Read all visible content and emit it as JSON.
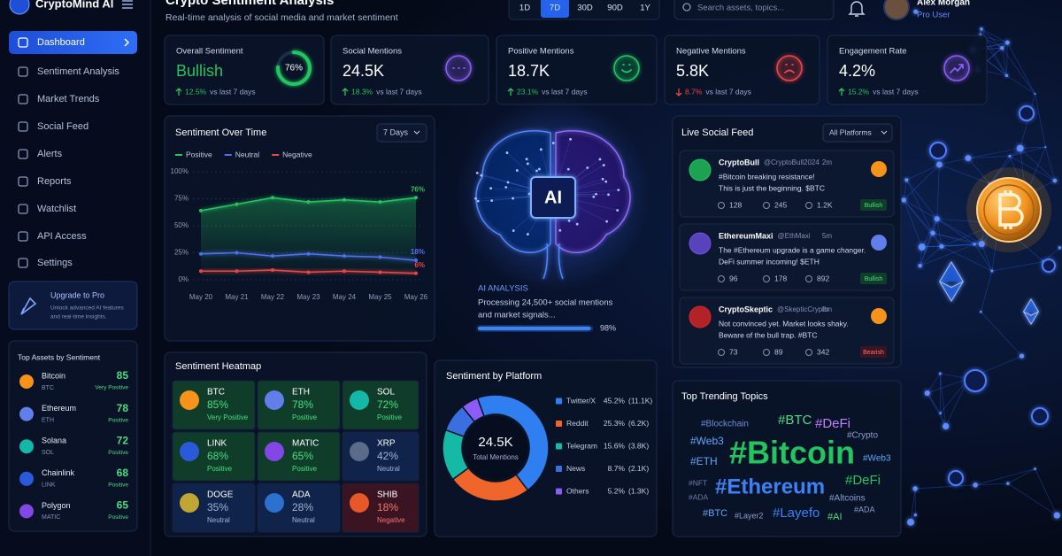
{
  "sidebar": {
    "brand": "CryptoMind AI",
    "nav": [
      "Dashboard",
      "Sentiment Analysis",
      "Market Trends",
      "Social Feed",
      "Alerts",
      "Reports",
      "Watchlist",
      "API Access",
      "Settings"
    ],
    "upgrade": {
      "title": "Upgrade to Pro",
      "text": [
        "Unlock advanced AI features",
        "and real-time insights."
      ]
    },
    "top_assets": {
      "title": "Top Assets by Sentiment",
      "rows": [
        {
          "name": "Bitcoin",
          "symbol": "BTC",
          "score": "85",
          "label": "Very Positive"
        },
        {
          "name": "Ethereum",
          "symbol": "ETH",
          "score": "78",
          "label": "Positive"
        },
        {
          "name": "Solana",
          "symbol": "SOL",
          "score": "72",
          "label": "Positive"
        },
        {
          "name": "Chainlink",
          "symbol": "LINK",
          "score": "68",
          "label": "Positive"
        },
        {
          "name": "Polygon",
          "symbol": "MATIC",
          "score": "65",
          "label": "Positive"
        }
      ]
    }
  },
  "header": {
    "title": "Crypto Sentiment Analysis",
    "subtitle": "Real-time analysis of social media and market sentiment",
    "ranges": [
      "1D",
      "7D",
      "30D",
      "90D",
      "1Y"
    ],
    "active_range": 1,
    "search": "Search assets, topics...",
    "user": "Alex Morgan",
    "plan": "Pro User"
  },
  "stats": [
    {
      "title": "Overall Sentiment",
      "value": "Bullish",
      "change": "12.5%",
      "note": "vs last 7 days",
      "trend": "up",
      "ring": 76,
      "ring_label": "76%"
    },
    {
      "title": "Social Mentions",
      "value": "24.5K",
      "change": "18.3%",
      "note": "vs last 7 days",
      "trend": "up"
    },
    {
      "title": "Positive Mentions",
      "value": "18.7K",
      "change": "23.1%",
      "note": "vs last 7 days",
      "trend": "up"
    },
    {
      "title": "Negative Mentions",
      "value": "5.8K",
      "change": "8.7%",
      "note": "vs last 7 days",
      "trend": "down"
    },
    {
      "title": "Engagement Rate",
      "value": "4.2%",
      "change": "15.2%",
      "note": "vs last 7 days",
      "trend": "up"
    }
  ],
  "sentiment_over_time": {
    "type": "line",
    "title": "Sentiment Over Time",
    "dropdown": "7 Days",
    "categories": [
      "May 20",
      "May 21",
      "May 22",
      "May 23",
      "May 24",
      "May 25",
      "May 26"
    ],
    "ylim": [
      0,
      100
    ],
    "yticks": [
      {
        "value": 0,
        "label": "0%"
      },
      {
        "value": 25,
        "label": "25%"
      },
      {
        "value": 50,
        "label": "50%"
      },
      {
        "value": 75,
        "label": "75%"
      },
      {
        "value": 100,
        "label": "100%"
      }
    ],
    "grid": true,
    "series": [
      {
        "name": "Positive",
        "color": "#22c55e",
        "values": [
          64,
          70,
          76,
          72,
          74,
          72,
          76
        ],
        "end_label": "76%"
      },
      {
        "name": "Neutral",
        "color": "#4f6ff0",
        "values": [
          24,
          25,
          22,
          24,
          22,
          21,
          18
        ],
        "end_label": "18%"
      },
      {
        "name": "Negative",
        "color": "#ef4444",
        "values": [
          8,
          8,
          9,
          7,
          8,
          7,
          6
        ],
        "end_label": "6%"
      }
    ]
  },
  "ai_panel": {
    "chip": "AI",
    "title": "AI ANALYSIS",
    "text": [
      "Processing 24,500+ social mentions",
      "and market signals..."
    ],
    "progress": 98,
    "progress_label": "98%"
  },
  "social_feed": {
    "title": "Live Social Feed",
    "dropdown": "All Platforms",
    "posts": [
      {
        "name": "CryptoBull",
        "handle": "@CryptoBull2024",
        "time": "2m",
        "lines": [
          "#Bitcoin breaking resistance!",
          "This is just the beginning. $BTC"
        ],
        "replies": "128",
        "reposts": "245",
        "likes": "1.2K",
        "tag": "Bullish"
      },
      {
        "name": "EthereumMaxi",
        "handle": "@EthMaxi",
        "time": "5m",
        "lines": [
          "The #Ethereum upgrade is a game changer.",
          "DeFi summer incoming! $ETH"
        ],
        "replies": "96",
        "reposts": "178",
        "likes": "892",
        "tag": "Bullish"
      },
      {
        "name": "CryptoSkeptic",
        "handle": "@SkepticCrypto",
        "time": "8m",
        "lines": [
          "Not convinced yet. Market looks shaky.",
          "Beware of the bull trap. #BTC"
        ],
        "replies": "73",
        "reposts": "89",
        "likes": "342",
        "tag": "Bearish"
      }
    ]
  },
  "heatmap": {
    "title": "Sentiment Heatmap",
    "cells": [
      {
        "symbol": "BTC",
        "value": "85%",
        "label": "Very Positive"
      },
      {
        "symbol": "ETH",
        "value": "78%",
        "label": "Positive"
      },
      {
        "symbol": "SOL",
        "value": "72%",
        "label": "Positive"
      },
      {
        "symbol": "LINK",
        "value": "68%",
        "label": "Positive"
      },
      {
        "symbol": "MATIC",
        "value": "65%",
        "label": "Positive"
      },
      {
        "symbol": "XRP",
        "value": "42%",
        "label": "Neutral"
      },
      {
        "symbol": "DOGE",
        "value": "35%",
        "label": "Neutral"
      },
      {
        "symbol": "ADA",
        "value": "28%",
        "label": "Neutral"
      },
      {
        "symbol": "SHIB",
        "value": "18%",
        "label": "Negative"
      }
    ]
  },
  "platforms": {
    "type": "donut",
    "title": "Sentiment by Platform",
    "center_value": "24.5K",
    "center_label": "Total Mentions",
    "categories": [
      "Twitter/X",
      "Reddit",
      "Telegram",
      "News",
      "Others"
    ],
    "values": [
      45.2,
      25.3,
      15.6,
      8.7,
      5.2
    ],
    "value_labels": [
      "45.2%",
      "25.3%",
      "15.6%",
      "8.7%",
      "5.2%"
    ],
    "counts": [
      "(11.1K)",
      "(6.2K)",
      "(3.8K)",
      "(2.1K)",
      "(1.3K)"
    ],
    "colors": [
      "#2f7ff0",
      "#f0652a",
      "#16b8a6",
      "#3b6fe0",
      "#8b5cf6"
    ]
  },
  "trending": {
    "title": "Top Trending Topics",
    "words": [
      "#Blockchain",
      "#BTC",
      "#DeFi",
      "#Web3",
      "#Crypto",
      "#Bitcoin",
      "#ETH",
      "#Web3",
      "#NFT",
      "#Ethereum",
      "#DeFi",
      "#ADA",
      "#Altcoins",
      "#BTC",
      "#Layer2",
      "#Layefo",
      "#AI",
      "#ADA"
    ]
  }
}
